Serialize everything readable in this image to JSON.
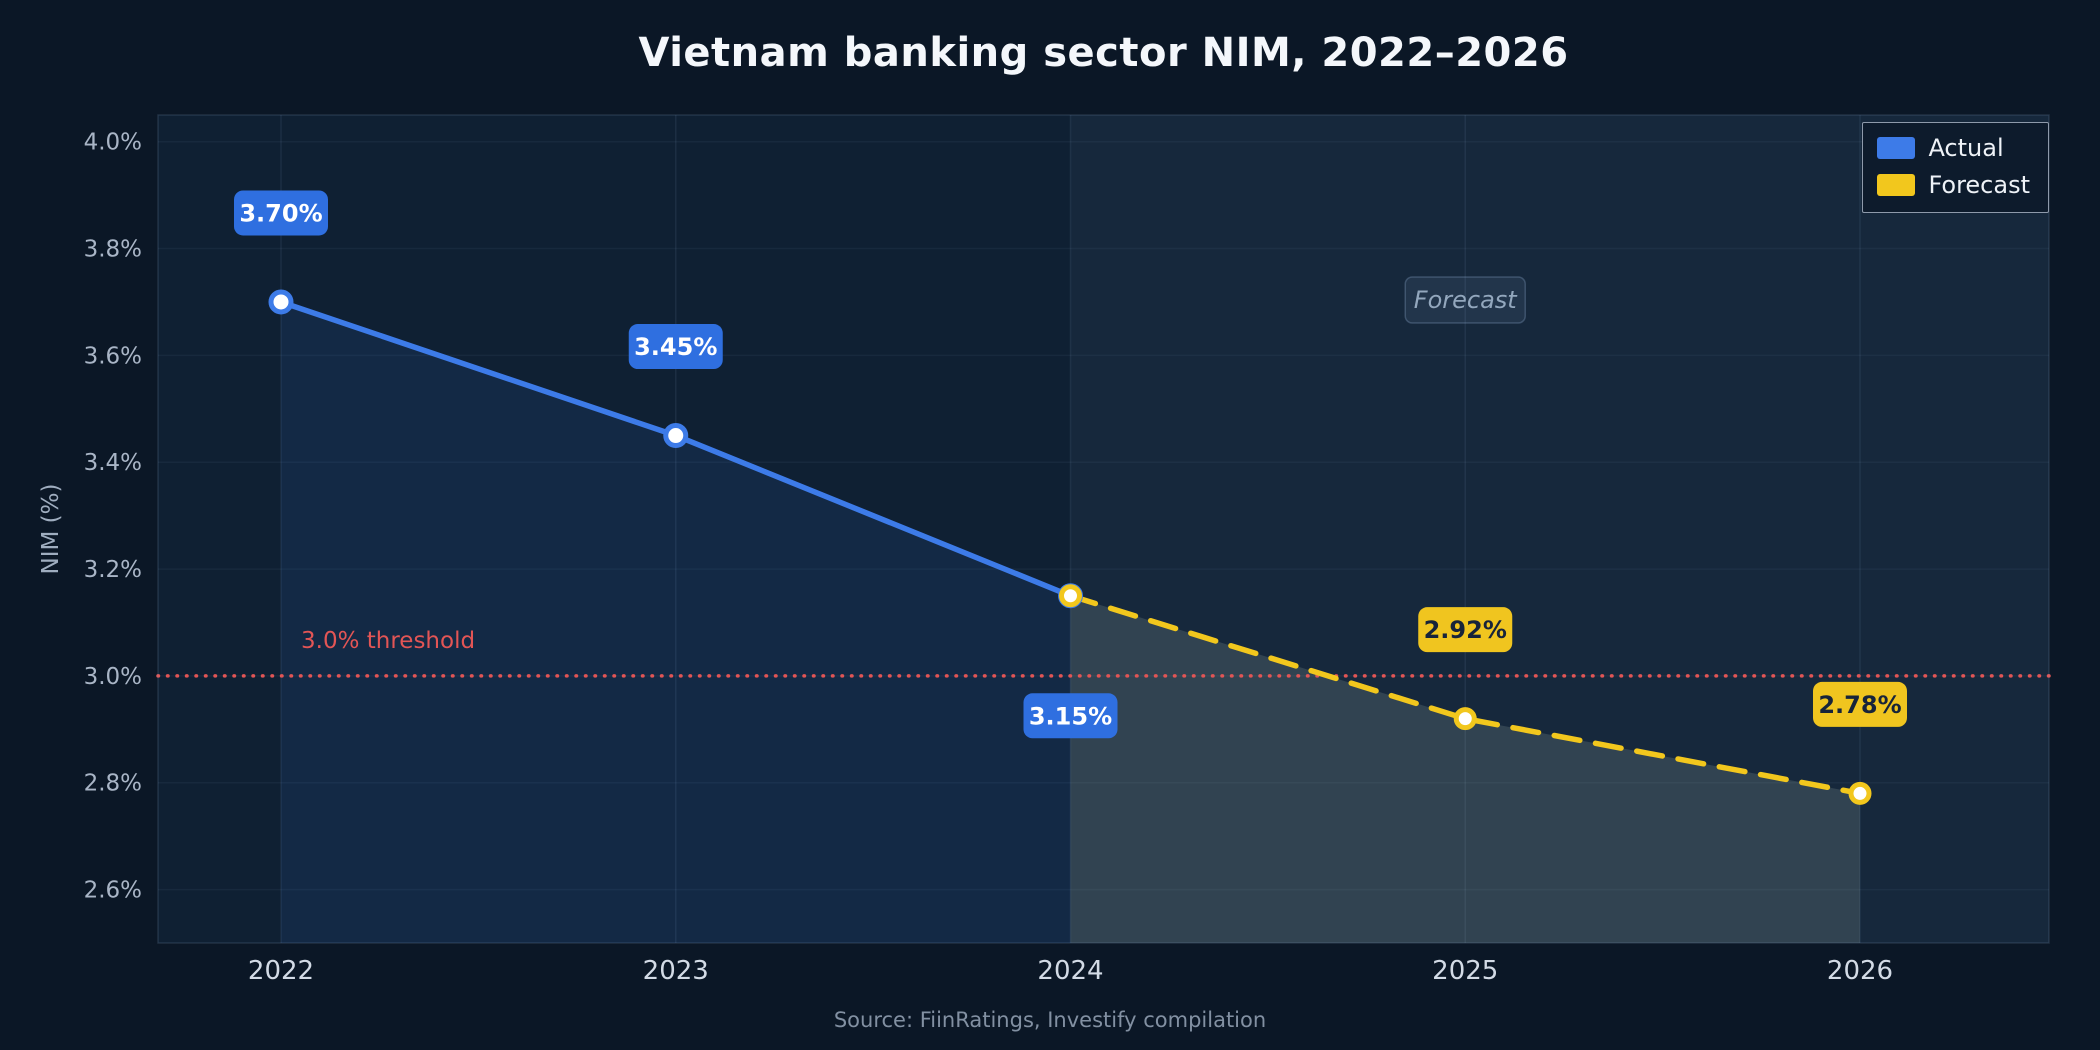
{
  "page": {
    "background": "#0b1726"
  },
  "chart_data": {
    "type": "line",
    "title": "Vietnam banking sector NIM, 2022–2026",
    "ylabel": "NIM (%)",
    "xlabel": "",
    "x": [
      2022,
      2023,
      2024,
      2025,
      2026
    ],
    "xtick_labels": [
      "2022",
      "2023",
      "2024",
      "2025",
      "2026"
    ],
    "yticks": [
      2.6,
      2.8,
      3.0,
      3.2,
      3.4,
      3.6,
      3.8,
      4.0
    ],
    "ytick_labels": [
      "2.6%",
      "2.8%",
      "3.0%",
      "3.2%",
      "3.4%",
      "3.6%",
      "3.8%",
      "4.0%"
    ],
    "ylim": [
      2.5,
      4.05
    ],
    "grid": true,
    "legend_position": "top-right",
    "series": [
      {
        "name": "Actual",
        "x": [
          2022,
          2023,
          2024
        ],
        "values": [
          3.7,
          3.45,
          3.15
        ],
        "color": "#3d7be8",
        "style": "solid"
      },
      {
        "name": "Forecast",
        "x": [
          2024,
          2025,
          2026
        ],
        "values": [
          3.15,
          2.92,
          2.78
        ],
        "color": "#f2c71d",
        "style": "dashed"
      }
    ],
    "point_labels": [
      {
        "text": "3.70%",
        "x": 2022,
        "value": 3.7,
        "placement": "above",
        "style": "actual"
      },
      {
        "text": "3.45%",
        "x": 2023,
        "value": 3.45,
        "placement": "above",
        "style": "actual"
      },
      {
        "text": "3.15%",
        "x": 2024,
        "value": 3.15,
        "placement": "below",
        "style": "actual"
      },
      {
        "text": "2.92%",
        "x": 2025,
        "value": 2.92,
        "placement": "above",
        "style": "forecast"
      },
      {
        "text": "2.78%",
        "x": 2026,
        "value": 2.78,
        "placement": "above",
        "style": "forecast"
      }
    ],
    "threshold": {
      "value": 3.0,
      "label": "3.0% threshold",
      "color": "#e25555"
    },
    "forecast_region": {
      "from": 2024,
      "label": "Forecast"
    },
    "source": "Source: FiinRatings, Investify compilation",
    "colors": {
      "plot_bg": "#0f2033",
      "forecast_band": "rgba(165,200,230,0.05)",
      "actual_fill": "rgba(61,123,232,0.10)",
      "forecast_fill": "rgba(195,210,190,0.16)",
      "badge_actual_bg": "#2f6fe0",
      "badge_actual_text": "#ffffff",
      "badge_forecast_bg": "#f0c51f",
      "badge_forecast_text": "#17243a",
      "grid": "rgba(150,180,215,0.10)",
      "axis_text": "#a9b5c6",
      "xaxis_text": "#d3dbe6",
      "forecast_label_text": "#93a7bd"
    }
  }
}
